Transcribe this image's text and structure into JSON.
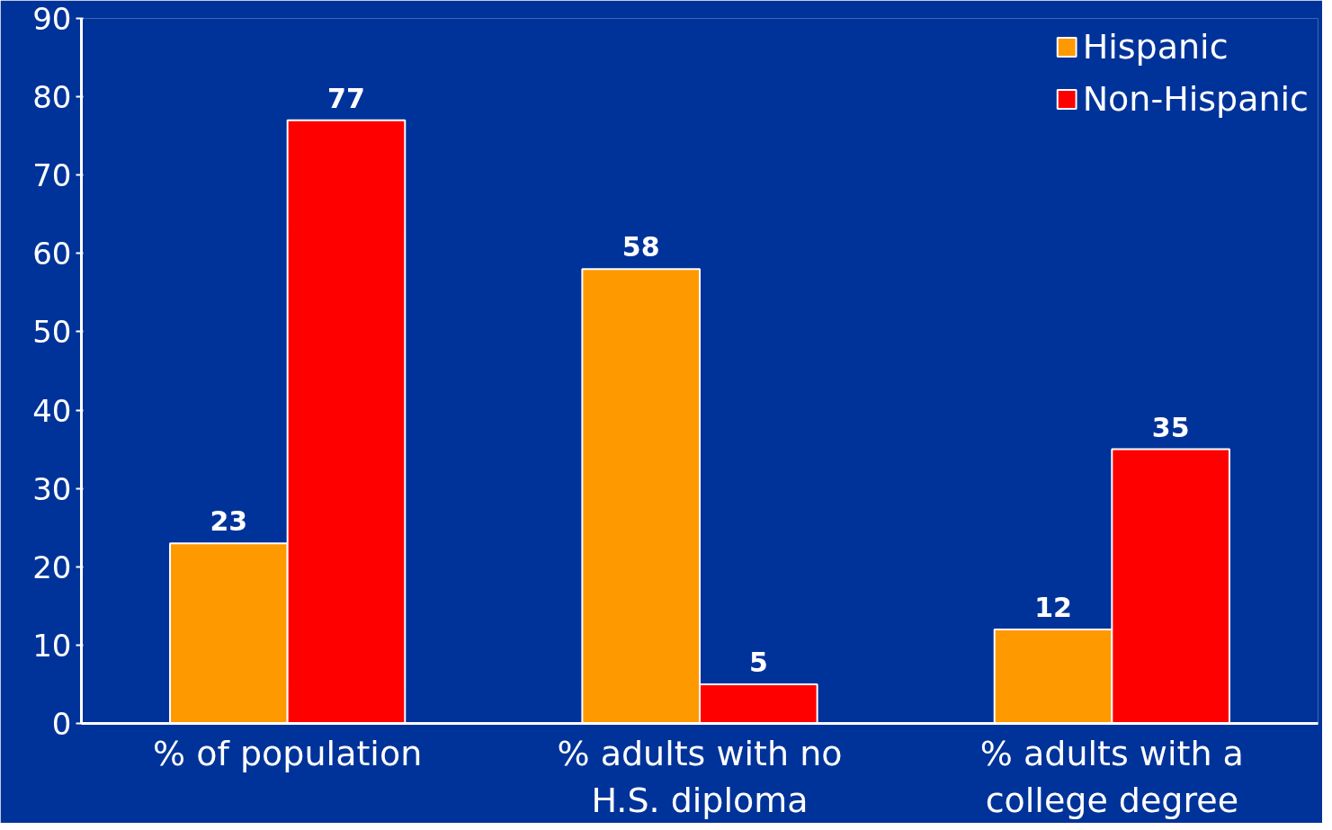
{
  "chart_data": {
    "type": "bar",
    "categories": [
      "% of population",
      "% adults with no H.S. diploma",
      "% adults with a college degree"
    ],
    "series": [
      {
        "name": "Hispanic",
        "color": "#ff9900",
        "values": [
          23,
          58,
          12
        ]
      },
      {
        "name": "Non-Hispanic",
        "color": "#ff0000",
        "values": [
          77,
          5,
          35
        ]
      }
    ],
    "ylim": [
      0,
      90
    ],
    "yticks": [
      0,
      10,
      20,
      30,
      40,
      50,
      60,
      70,
      80,
      90
    ],
    "data_labels": true,
    "legend": "top right",
    "grid": false
  }
}
